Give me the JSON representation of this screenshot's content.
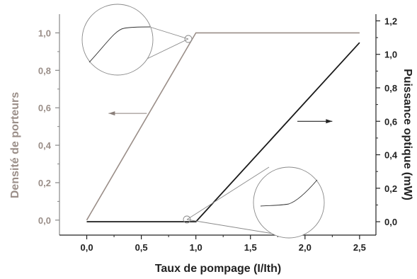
{
  "chart_data": {
    "type": "line",
    "xlabel": "Taux de pompage (I/Ith)",
    "ylabel_left": "Densité de porteurs",
    "ylabel_right": "Puissance optique (mW)",
    "xlim": [
      -0.25,
      2.65
    ],
    "ylim_left": [
      -0.08,
      1.1
    ],
    "ylim_right": [
      -0.08,
      1.24
    ],
    "x_ticks": [
      "0,0",
      "0,5",
      "1,0",
      "1,5",
      "2,0",
      "2,5"
    ],
    "y_left_ticks": [
      "0,0",
      "0,2",
      "0,4",
      "0,6",
      "0,8",
      "1,0"
    ],
    "y_right_ticks": [
      "0,0",
      "0,2",
      "0,4",
      "0,6",
      "0,8",
      "1,0",
      "1,2"
    ],
    "series": [
      {
        "axis": "left",
        "color": "#9a8e88",
        "x": [
          0.0,
          1.0,
          2.5
        ],
        "y": [
          0.0,
          1.0,
          1.0
        ]
      },
      {
        "axis": "right",
        "color": "#1a1a1a",
        "x": [
          0.0,
          1.0,
          2.5
        ],
        "y": [
          0.0,
          0.0,
          1.07
        ]
      }
    ],
    "annotations": [
      {
        "type": "arrow",
        "direction": "left",
        "axis": "left",
        "x": [
          0.55,
          0.2
        ],
        "y": 0.57
      },
      {
        "type": "arrow",
        "direction": "right",
        "axis": "right",
        "x": [
          1.93,
          2.25
        ],
        "y": 0.6
      }
    ],
    "grid": false
  },
  "colors": {
    "left_axis": "#9a8e88",
    "right_axis": "#1a1a1a",
    "zoom": "#8a8a8a"
  }
}
